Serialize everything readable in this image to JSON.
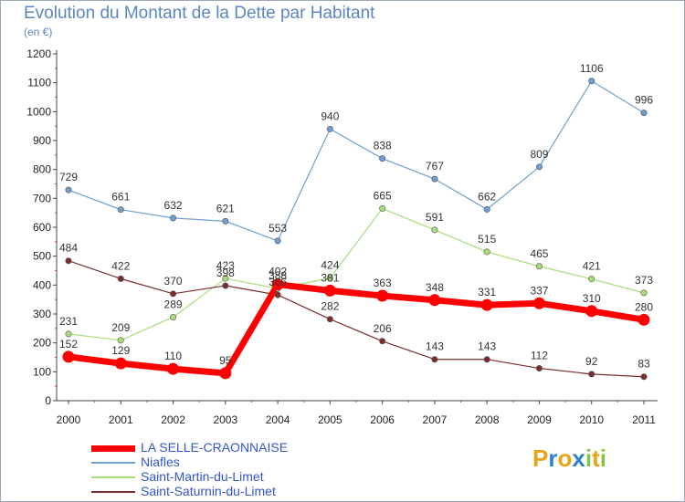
{
  "chart_title": "Evolution du Montant de la Dette par Habitant",
  "chart_subtitle": "(en €)",
  "brand": {
    "letters": [
      "P",
      "r",
      "o",
      "x",
      "i",
      "t",
      "i"
    ],
    "colors": [
      "#e8a317",
      "#2f80c9",
      "#e8a317",
      "#2f80c9",
      "#84c441",
      "#e8a317",
      "#84c441"
    ]
  },
  "chart_data": {
    "type": "line",
    "x": [
      "2000",
      "2001",
      "2002",
      "2003",
      "2004",
      "2005",
      "2006",
      "2007",
      "2008",
      "2009",
      "2010",
      "2011"
    ],
    "ylim": [
      0,
      1200
    ],
    "yticks": [
      0,
      100,
      200,
      300,
      400,
      500,
      600,
      700,
      800,
      900,
      1000,
      1100,
      1200
    ],
    "grid": false,
    "legend_position": "bottom-left",
    "series": [
      {
        "name": "LA SELLE-CRAONNAISE",
        "color": "#ff0000",
        "width": 7,
        "values": [
          152,
          129,
          110,
          95,
          402,
          381,
          363,
          348,
          331,
          337,
          310,
          280
        ],
        "labels": [
          "152",
          "129",
          "110",
          "95",
          "402",
          "381",
          "363",
          "348",
          "331",
          "337",
          "310",
          "280"
        ]
      },
      {
        "name": "Niafles",
        "color": "#6f9fd0",
        "width": 1.2,
        "values": [
          729,
          661,
          632,
          621,
          553,
          940,
          838,
          767,
          662,
          809,
          1106,
          996
        ],
        "labels": [
          "729",
          "661",
          "632",
          "621",
          "553",
          "940",
          "838",
          "767",
          "662",
          "809",
          "1106",
          "996"
        ]
      },
      {
        "name": "Saint-Martin-du-Limet",
        "color": "#a8de7a",
        "width": 1.2,
        "values": [
          231,
          209,
          289,
          423,
          388,
          424,
          665,
          591,
          515,
          465,
          421,
          373
        ],
        "labels": [
          "231",
          "209",
          "289",
          "423",
          "388",
          "424",
          "665",
          "591",
          "515",
          "465",
          "421",
          "373"
        ]
      },
      {
        "name": "Saint-Saturnin-du-Limet",
        "color": "#7a2e2e",
        "width": 1.2,
        "values": [
          484,
          422,
          370,
          398,
          366,
          282,
          206,
          143,
          143,
          112,
          92,
          83
        ],
        "labels": [
          "484",
          "422",
          "370",
          "398",
          "366",
          "282",
          "206",
          "143",
          "143",
          "112",
          "92",
          "83"
        ]
      }
    ]
  }
}
